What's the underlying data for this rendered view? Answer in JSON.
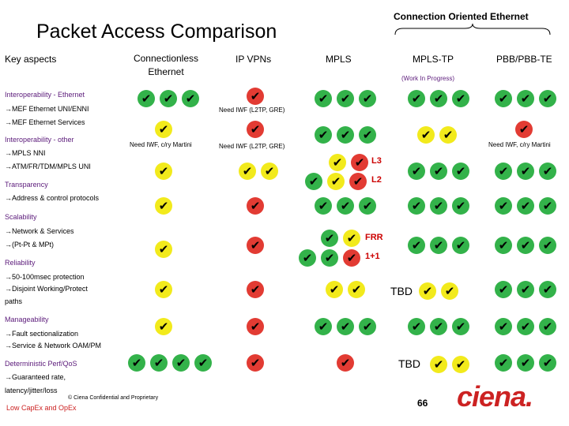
{
  "title": "Packet Access Comparison",
  "connection_oriented_label": "Connection Oriented Ethernet",
  "columns": {
    "key_aspects": "Key aspects",
    "connectionless": "Connectionless Ethernet",
    "ipvpn": "IP VPNs",
    "mpls": "MPLS",
    "mpls_tp": "MPLS-TP",
    "pbb": "PBB/PBB-TE",
    "mpls_tp_note": "(Work In Progress)"
  },
  "rows": {
    "r1": "Interoperability - Ethernet",
    "r2": "→MEF Ethernet UNI/ENNI",
    "r3": "→MEF Ethernet Services",
    "r4": "Interoperability - other",
    "r5": "→MPLS NNI",
    "r6": "→ATM/FR/TDM/MPLS UNI",
    "r7": "Transparency",
    "r8": "→Address & control protocols",
    "r9": "Scalability",
    "r10": "→Network & Services",
    "r11": "→(Pt-Pt & MPt)",
    "r12": "Reliability",
    "r13": "→50-100msec protection",
    "r14": "→Disjoint Working/Protect",
    "r15": "paths",
    "r16": "Manageability",
    "r17": "→Fault sectionalization",
    "r18": "→Service & Network OAM/PM",
    "r19": "Deterministic Perf/QoS",
    "r20": "→Guaranteed rate,",
    "r21": "latency/jitter/loss"
  },
  "notes": {
    "need_iwf_l2tp_1": "Need IWF (L2TP, GRE)",
    "need_iwf_l2tp_2": "Need IWF (L2TP, GRE)",
    "need_iwf_martini_1": "Need IWF, c/ry Martini",
    "need_iwf_martini_2": "Need IWF, c/ry Martini"
  },
  "labels": {
    "l3": "L3",
    "l2": "L2",
    "frr": "FRR",
    "one_plus_one": "1+1",
    "tbd1": "TBD",
    "tbd2": "TBD"
  },
  "check_glyph": "✔",
  "colors": {
    "green": "#33b24a",
    "yellow": "#f2ea1c",
    "red": "#e23b33",
    "accent_red": "#cc2222"
  },
  "footer": {
    "confidential": "© Ciena Confidential and Proprietary",
    "low_capex": "Low CapEx and OpEx",
    "page": "66",
    "logo": "ciena."
  }
}
